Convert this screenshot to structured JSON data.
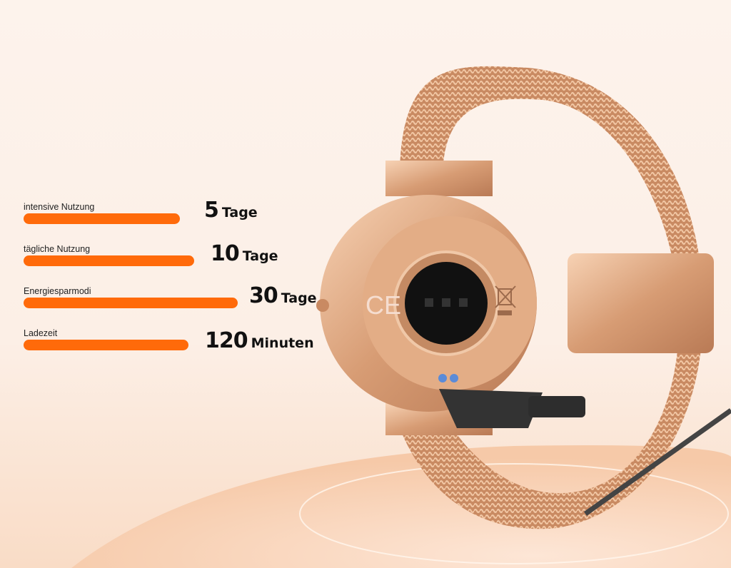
{
  "battery": {
    "rows": [
      {
        "label": "intensive Nutzung",
        "number": "5",
        "unit": "Tage"
      },
      {
        "label": "tägliche Nutzung",
        "number": "10",
        "unit": "Tage"
      },
      {
        "label": "Energiesparmodi",
        "number": "30",
        "unit": "Tage"
      },
      {
        "label": "Ladezeit",
        "number": "120",
        "unit": "Minuten"
      }
    ]
  },
  "colors": {
    "accent": "#ff6a0a",
    "gold": "#d9a07a",
    "background": "#fdf3ec"
  },
  "product": {
    "image": "rose-gold smartwatch with mesh band and magnetic charger",
    "marks": [
      "CE",
      "weee-bin-icon"
    ]
  }
}
